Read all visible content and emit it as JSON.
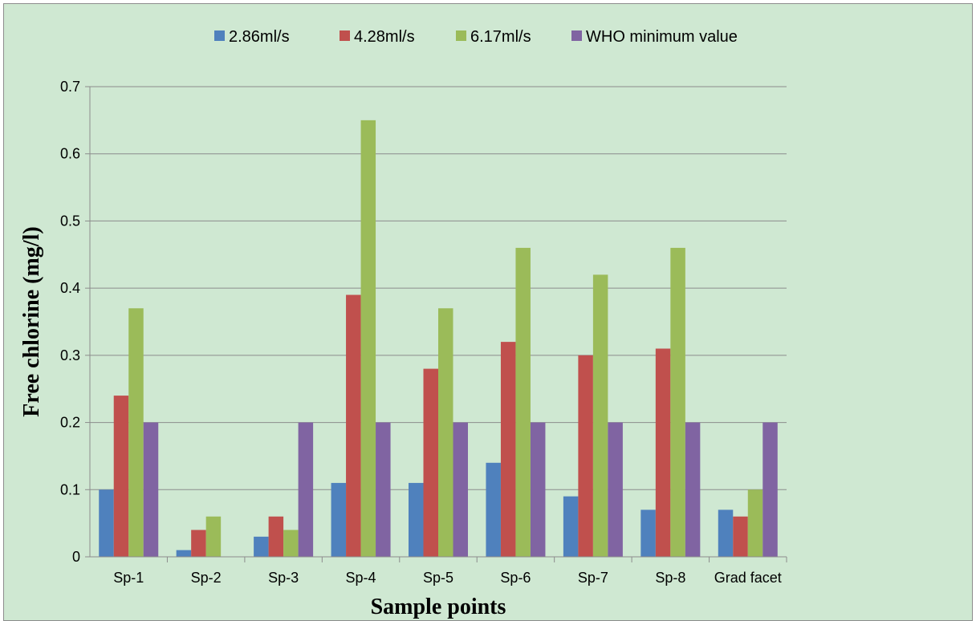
{
  "chart_data": {
    "type": "bar",
    "title": "",
    "xlabel": "Sample points",
    "ylabel": "Free chlorine  (mg/l)",
    "ylim": [
      0,
      0.7
    ],
    "yticks": [
      "0",
      "0.1",
      "0.2",
      "0.3",
      "0.4",
      "0.5",
      "0.6",
      "0.7"
    ],
    "grid": true,
    "legend_position": "top",
    "categories": [
      "Sp-1",
      "Sp-2",
      "Sp-3",
      "Sp-4",
      "Sp-5",
      "Sp-6",
      "Sp-7",
      "Sp-8",
      "Grad facet"
    ],
    "series": [
      {
        "name": "2.86ml/s",
        "color": "#4f81bd",
        "values": [
          0.1,
          0.01,
          0.03,
          0.11,
          0.11,
          0.14,
          0.09,
          0.07,
          0.07
        ]
      },
      {
        "name": "4.28ml/s",
        "color": "#c0504d",
        "values": [
          0.24,
          0.04,
          0.06,
          0.39,
          0.28,
          0.32,
          0.3,
          0.31,
          0.06
        ]
      },
      {
        "name": "6.17ml/s",
        "color": "#9bbb59",
        "values": [
          0.37,
          0.06,
          0.04,
          0.65,
          0.37,
          0.46,
          0.42,
          0.46,
          0.1
        ]
      },
      {
        "name": "WHO minimum value",
        "color": "#8064a2",
        "values": [
          0.2,
          null,
          0.2,
          0.2,
          0.2,
          0.2,
          0.2,
          0.2,
          0.2
        ]
      }
    ]
  }
}
